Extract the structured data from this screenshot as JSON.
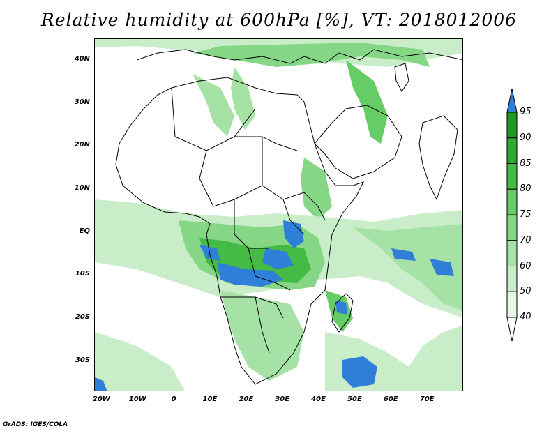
{
  "title": "Relative humidity at 600hPa [%], VT: 2018012006",
  "credit": "GrADS: IGES/COLA",
  "map": {
    "projection": "latlon",
    "lon_range": [
      -22,
      80
    ],
    "lat_range": [
      -37,
      45
    ],
    "lat_ticks": [
      {
        "value": 40,
        "label": "40N"
      },
      {
        "value": 30,
        "label": "30N"
      },
      {
        "value": 20,
        "label": "20N"
      },
      {
        "value": 10,
        "label": "10N"
      },
      {
        "value": 0,
        "label": "EQ"
      },
      {
        "value": -10,
        "label": "10S"
      },
      {
        "value": -20,
        "label": "20S"
      },
      {
        "value": -30,
        "label": "30S"
      }
    ],
    "lon_ticks": [
      {
        "value": -20,
        "label": "20W"
      },
      {
        "value": -10,
        "label": "10W"
      },
      {
        "value": 0,
        "label": "0"
      },
      {
        "value": 10,
        "label": "10E"
      },
      {
        "value": 20,
        "label": "20E"
      },
      {
        "value": 30,
        "label": "30E"
      },
      {
        "value": 40,
        "label": "40E"
      },
      {
        "value": 50,
        "label": "50E"
      },
      {
        "value": 60,
        "label": "60E"
      },
      {
        "value": 70,
        "label": "70E"
      }
    ]
  },
  "colorbar": {
    "levels": [
      {
        "value": "40",
        "color": "#e6f7e6"
      },
      {
        "value": "50",
        "color": "#c8edc8"
      },
      {
        "value": "60",
        "color": "#a6e2a6"
      },
      {
        "value": "70",
        "color": "#85d785"
      },
      {
        "value": "75",
        "color": "#66cc66"
      },
      {
        "value": "80",
        "color": "#44bb44"
      },
      {
        "value": "85",
        "color": "#2faa2f"
      },
      {
        "value": "90",
        "color": "#1f9a1f"
      },
      {
        "value": "95",
        "color": "#2f7fd8"
      }
    ],
    "below_color": "#ffffff",
    "above_color": "#2f7fd8"
  }
}
